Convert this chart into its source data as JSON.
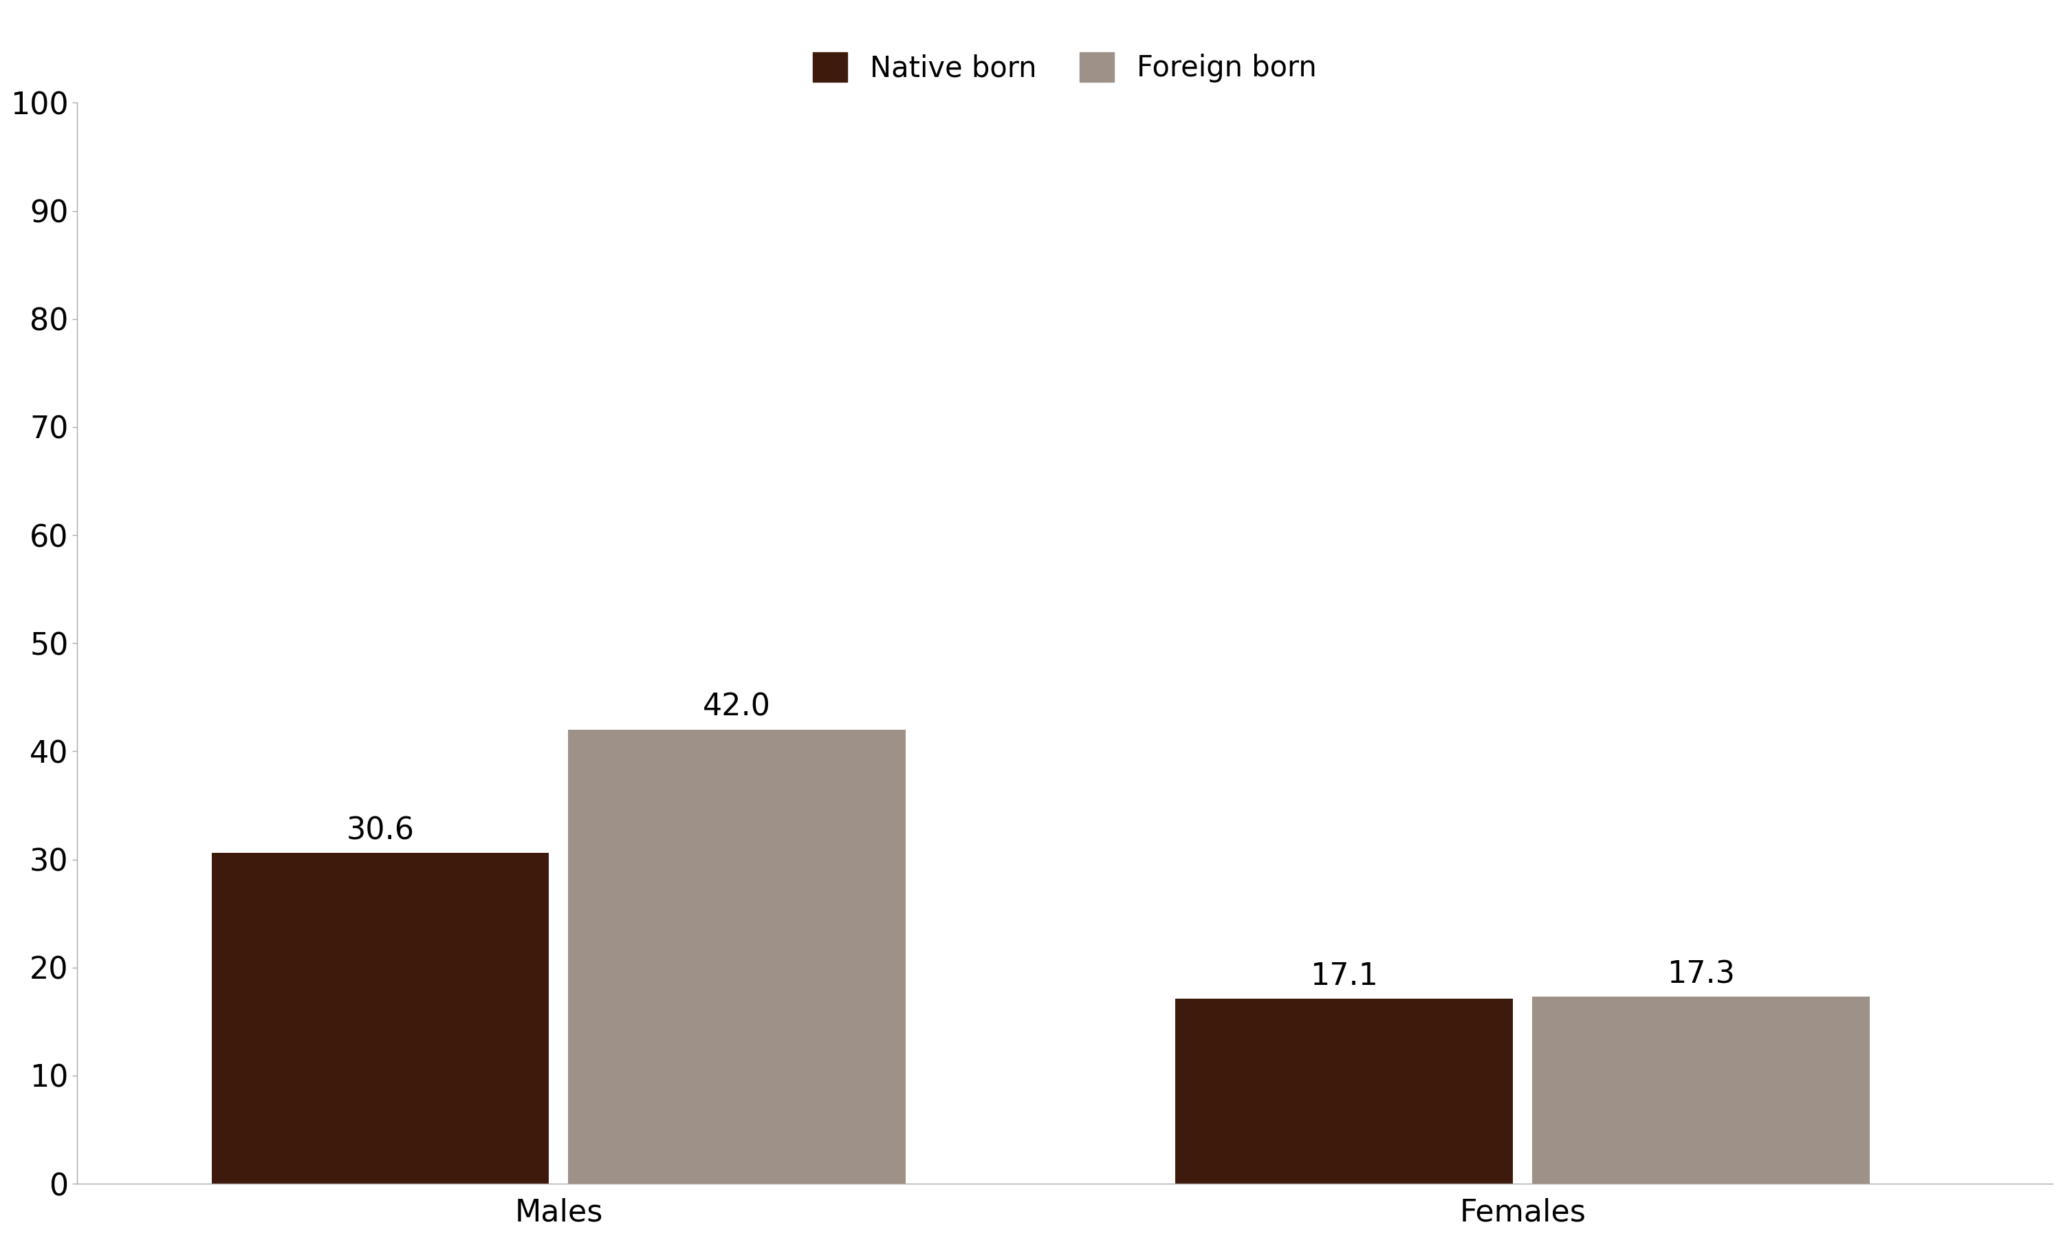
{
  "categories": [
    "Males",
    "Females"
  ],
  "native_born": [
    30.6,
    17.1
  ],
  "foreign_born": [
    42.0,
    17.3
  ],
  "native_born_color": "#3D1A0B",
  "foreign_born_color": "#9E9187",
  "ylim": [
    0,
    100
  ],
  "yticks": [
    0,
    10,
    20,
    30,
    40,
    50,
    60,
    70,
    80,
    90,
    100
  ],
  "legend_labels": [
    "Native born",
    "Foreign born"
  ],
  "bar_width": 0.35,
  "group_centers": [
    0.35,
    1.35
  ],
  "value_fontsize": 32,
  "tick_fontsize": 32,
  "legend_fontsize": 30,
  "label_color": "#000000",
  "background_color": "#ffffff"
}
